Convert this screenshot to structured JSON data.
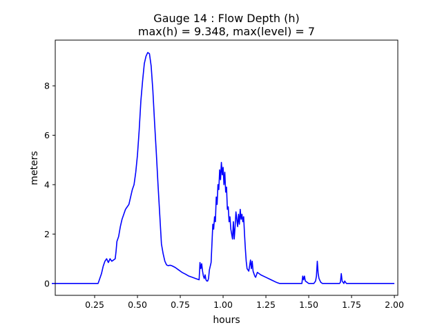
{
  "chart_data": {
    "type": "line",
    "title": "Gauge 14 : Flow Depth (h)",
    "subtitle": "max(h) =   9.348,    max(level) = 7",
    "xlabel": "hours",
    "ylabel": "meters",
    "xlim": [
      0.02,
      2.02
    ],
    "ylim": [
      -0.48,
      9.85
    ],
    "xticks": [
      0.25,
      0.5,
      0.75,
      1.0,
      1.25,
      1.5,
      1.75,
      2.0
    ],
    "xtick_labels": [
      "0.25",
      "0.50",
      "0.75",
      "1.00",
      "1.25",
      "1.50",
      "1.75",
      "2.00"
    ],
    "yticks": [
      0,
      2,
      4,
      6,
      8
    ],
    "ytick_labels": [
      "0",
      "2",
      "4",
      "6",
      "8"
    ],
    "grid": false,
    "color": "#0000ff",
    "series": [
      {
        "x": [
          0.0,
          0.1,
          0.2,
          0.25,
          0.27,
          0.28,
          0.29,
          0.3,
          0.31,
          0.32,
          0.33,
          0.34,
          0.35,
          0.36,
          0.37,
          0.375,
          0.38,
          0.39,
          0.4,
          0.41,
          0.42,
          0.43,
          0.44,
          0.45,
          0.46,
          0.47,
          0.48,
          0.49,
          0.5,
          0.51,
          0.52,
          0.53,
          0.54,
          0.55,
          0.56,
          0.57,
          0.58,
          0.59,
          0.6,
          0.61,
          0.62,
          0.63,
          0.64,
          0.65,
          0.66,
          0.67,
          0.68,
          0.69,
          0.7,
          0.72,
          0.74,
          0.76,
          0.78,
          0.8,
          0.82,
          0.84,
          0.86,
          0.865,
          0.87,
          0.875,
          0.88,
          0.885,
          0.89,
          0.895,
          0.9,
          0.905,
          0.91,
          0.915,
          0.92,
          0.93,
          0.94,
          0.945,
          0.95,
          0.955,
          0.96,
          0.965,
          0.97,
          0.975,
          0.98,
          0.985,
          0.99,
          0.995,
          1.0,
          1.005,
          1.01,
          1.015,
          1.02,
          1.025,
          1.03,
          1.035,
          1.04,
          1.045,
          1.05,
          1.055,
          1.06,
          1.065,
          1.07,
          1.075,
          1.08,
          1.085,
          1.09,
          1.095,
          1.1,
          1.105,
          1.11,
          1.115,
          1.12,
          1.125,
          1.13,
          1.135,
          1.14,
          1.15,
          1.16,
          1.165,
          1.17,
          1.175,
          1.18,
          1.185,
          1.19,
          1.2,
          1.22,
          1.25,
          1.28,
          1.31,
          1.33,
          1.4,
          1.46,
          1.465,
          1.47,
          1.475,
          1.48,
          1.49,
          1.5,
          1.53,
          1.54,
          1.545,
          1.55,
          1.555,
          1.56,
          1.57,
          1.58,
          1.65,
          1.68,
          1.685,
          1.69,
          1.695,
          1.7,
          1.705,
          1.71,
          1.715,
          1.72,
          1.8,
          1.9,
          2.0
        ],
        "y": [
          0.0,
          0.0,
          0.0,
          0.0,
          0.0,
          0.2,
          0.4,
          0.7,
          0.9,
          1.0,
          0.85,
          1.0,
          0.9,
          0.95,
          1.0,
          1.3,
          1.7,
          1.9,
          2.3,
          2.6,
          2.8,
          3.0,
          3.1,
          3.2,
          3.5,
          3.8,
          4.0,
          4.5,
          5.2,
          6.2,
          7.4,
          8.2,
          8.9,
          9.2,
          9.348,
          9.3,
          8.8,
          7.8,
          6.5,
          5.3,
          4.0,
          2.8,
          1.6,
          1.2,
          0.9,
          0.75,
          0.72,
          0.74,
          0.72,
          0.65,
          0.55,
          0.45,
          0.38,
          0.3,
          0.25,
          0.2,
          0.15,
          0.85,
          0.6,
          0.8,
          0.5,
          0.3,
          0.2,
          0.35,
          0.15,
          0.1,
          0.1,
          0.2,
          0.55,
          0.85,
          2.4,
          2.2,
          2.7,
          2.5,
          3.5,
          3.2,
          4.0,
          3.8,
          4.6,
          4.2,
          4.9,
          4.4,
          4.7,
          4.0,
          4.5,
          3.7,
          3.9,
          3.0,
          3.1,
          2.5,
          2.7,
          2.2,
          2.0,
          1.8,
          2.5,
          1.8,
          2.3,
          2.9,
          2.6,
          2.3,
          2.8,
          2.4,
          3.0,
          2.6,
          2.8,
          2.5,
          2.7,
          2.0,
          1.4,
          0.9,
          0.6,
          0.5,
          0.95,
          0.6,
          0.9,
          0.5,
          0.4,
          0.3,
          0.25,
          0.45,
          0.35,
          0.25,
          0.15,
          0.05,
          0.0,
          0.0,
          0.0,
          0.3,
          0.15,
          0.3,
          0.1,
          0.05,
          0.0,
          0.0,
          0.1,
          0.3,
          0.9,
          0.4,
          0.2,
          0.05,
          0.0,
          0.0,
          0.0,
          0.05,
          0.4,
          0.1,
          0.05,
          0.0,
          0.1,
          0.05,
          0.0,
          0.0,
          0.0,
          0.0
        ]
      }
    ]
  }
}
